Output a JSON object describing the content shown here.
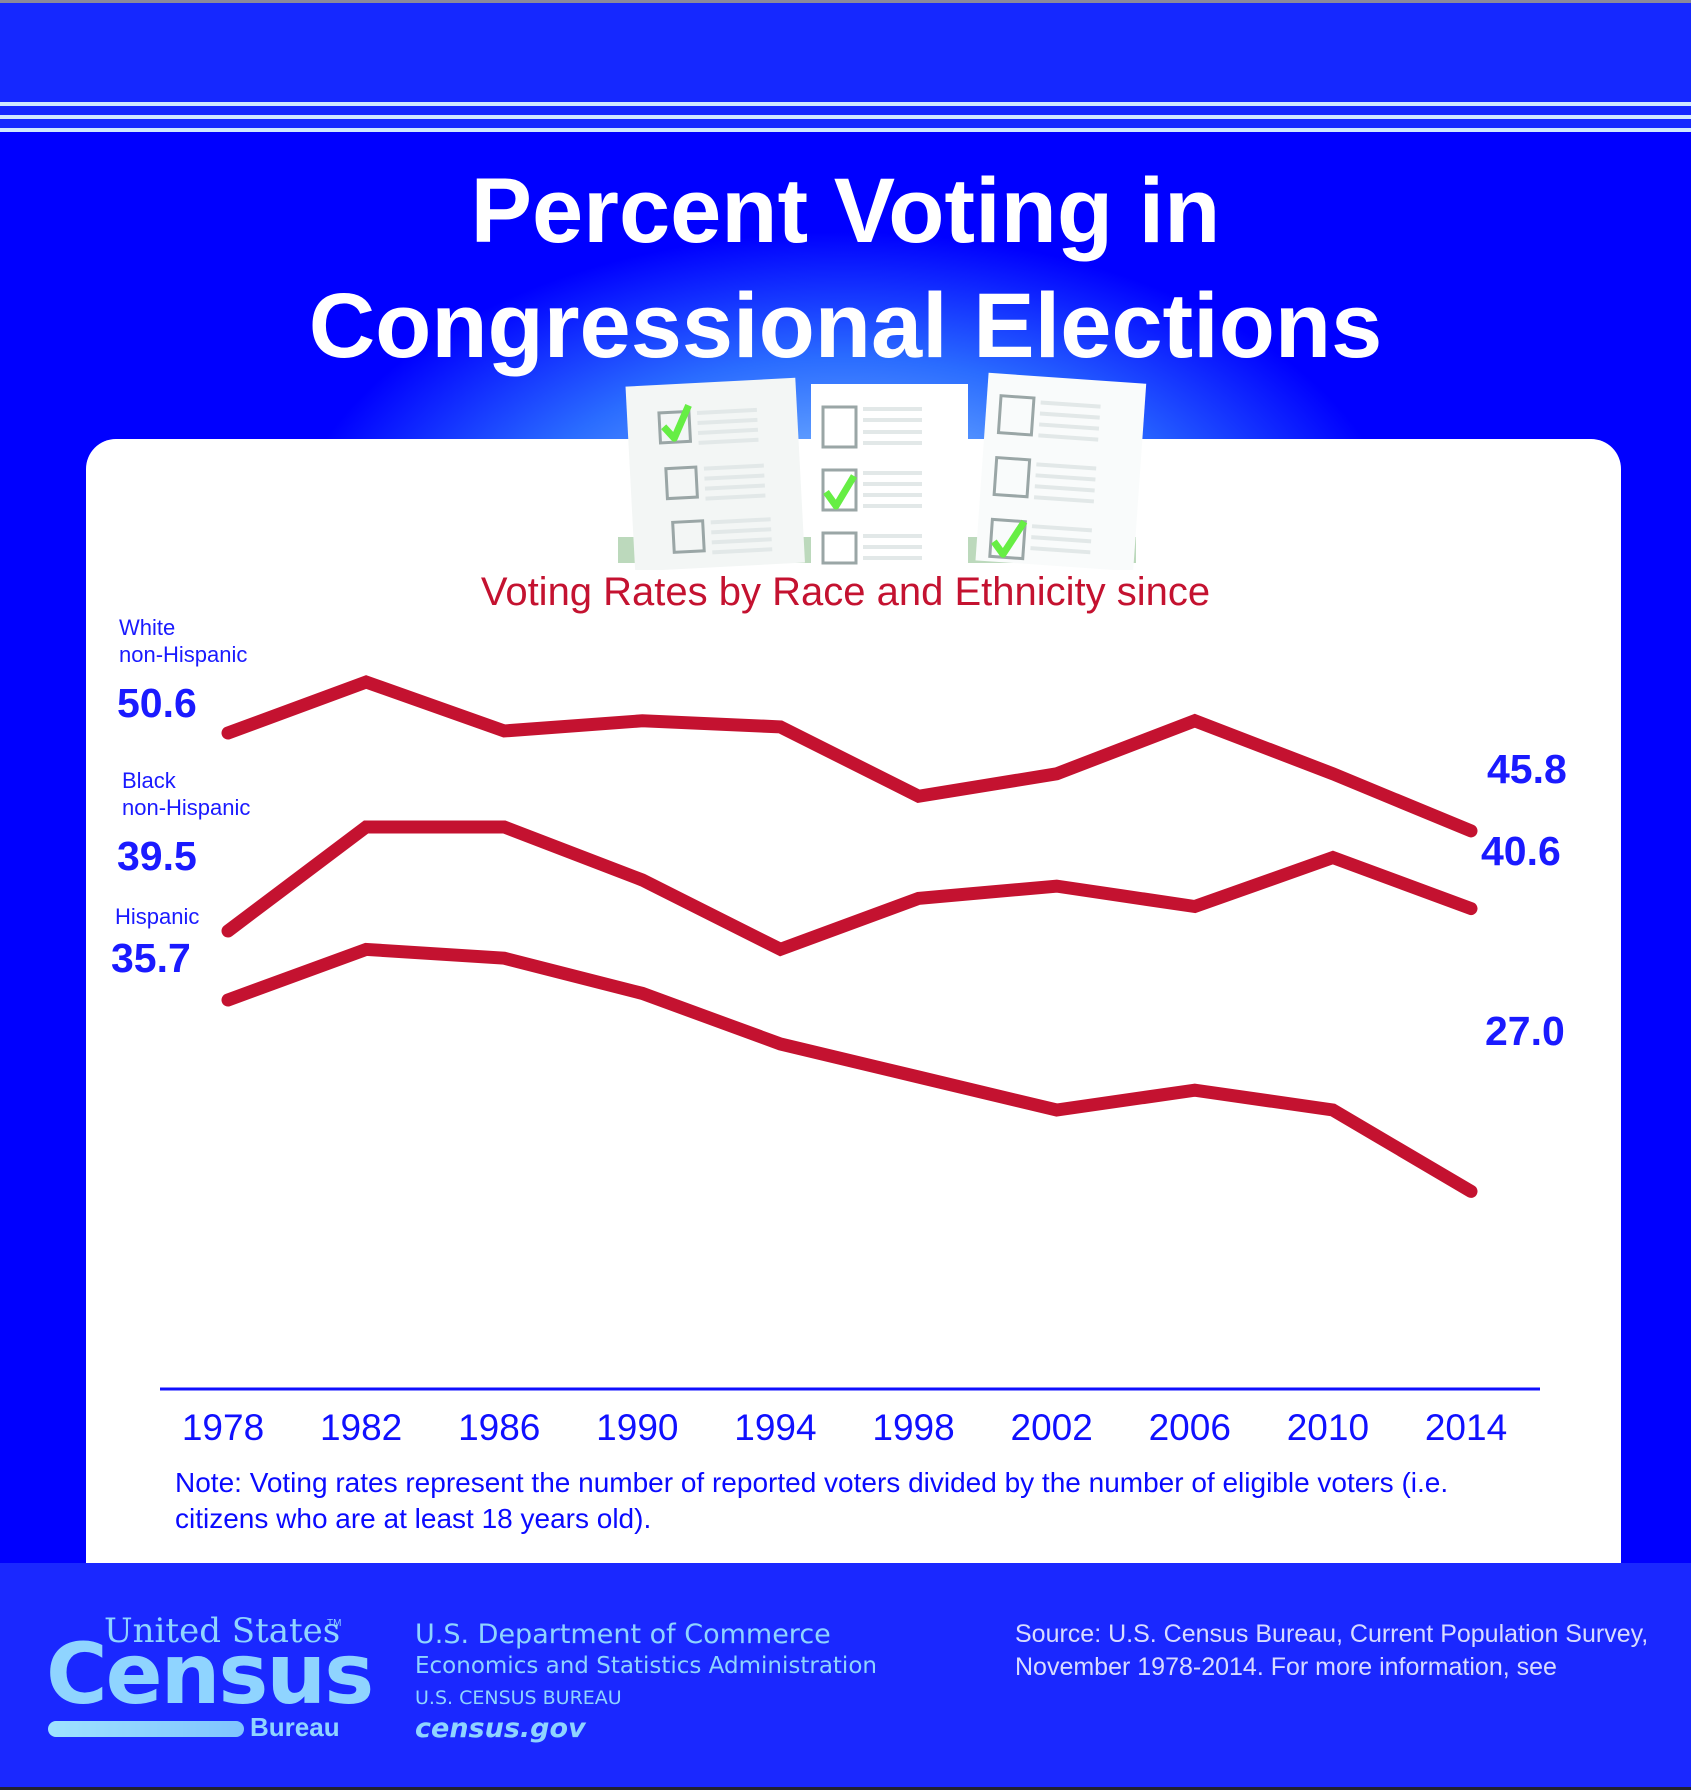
{
  "header": {
    "title_line1": "Percent Voting in",
    "title_line2": "Congressional Elections"
  },
  "chart_data": {
    "type": "line",
    "title": "Percent Voting in Congressional Elections",
    "subtitle": "Voting Rates by Race and Ethnicity since",
    "xlabel": "",
    "ylabel": "",
    "x": [
      1978,
      1982,
      1986,
      1990,
      1994,
      1998,
      2002,
      2006,
      2010,
      2014
    ],
    "x_tick_labels": [
      "1978",
      "1982",
      "1986",
      "1990",
      "1994",
      "1998",
      "2002",
      "2006",
      "2010",
      "2014"
    ],
    "grid": false,
    "legend": "inline-left",
    "series": [
      {
        "name": "White non-Hispanic",
        "label_line1": "White",
        "label_line2": "non-Hispanic",
        "start_label": "50.6",
        "end_label": "45.8",
        "values": [
          50.6,
          53.1,
          50.7,
          51.2,
          50.9,
          47.5,
          48.6,
          51.2,
          48.6,
          45.8
        ]
      },
      {
        "name": "Black non-Hispanic",
        "label_line1": "Black",
        "label_line2": "non-Hispanic",
        "start_label": "39.5",
        "end_label": "40.6",
        "values": [
          39.5,
          44.6,
          44.6,
          42.0,
          38.6,
          41.1,
          41.7,
          40.7,
          43.1,
          40.6
        ]
      },
      {
        "name": "Hispanic",
        "label_line1": "Hispanic",
        "label_line2": "",
        "start_label": "35.7",
        "end_label": "27.0",
        "values": [
          35.7,
          38.0,
          37.6,
          36.0,
          33.7,
          32.2,
          30.7,
          31.6,
          30.7,
          27.0
        ]
      }
    ],
    "line_color": "#c41230",
    "label_color": "#1a1aff",
    "note": "Note: Voting rates represent the number of reported voters divided by the number of eligible voters (i.e. citizens who are at least 18 years old)."
  },
  "ballots": {
    "icon": "ballot-checklist-icon",
    "checked_rows": [
      0,
      1,
      2
    ],
    "check_color": "#66ee44"
  },
  "footer": {
    "logo_united_states": "United States",
    "logo_tm": "TM",
    "logo_census": "Census",
    "logo_bureau": "Bureau",
    "dept_line1": "U.S. Department of Commerce",
    "dept_line2": "Economics and Statistics Administration",
    "dept_line3": "U.S. CENSUS BUREAU",
    "dept_line4": "census.gov",
    "source": "Source: U.S. Census Bureau, Current Population Survey, November 1978-2014. For more information, see"
  },
  "colors": {
    "background": "#0000ff",
    "band": "#1528ff",
    "accent_red": "#c41230",
    "text_blue": "#1a1aff",
    "logo_light_blue": "#8fd4ff"
  }
}
